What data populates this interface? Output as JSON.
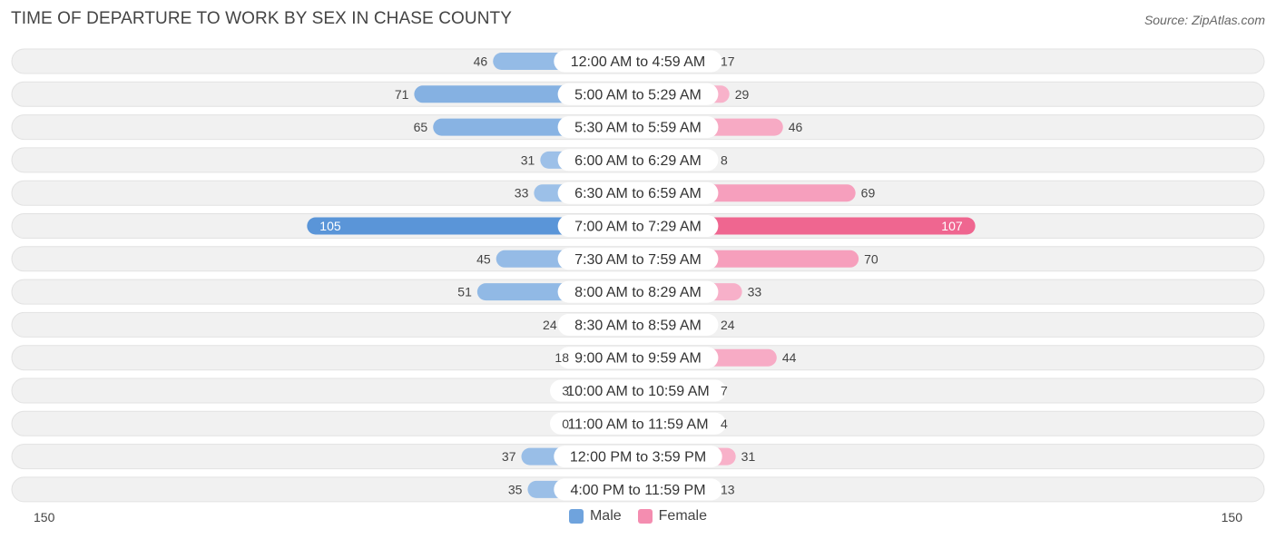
{
  "header": {
    "title": "TIME OF DEPARTURE TO WORK BY SEX IN CHASE COUNTY",
    "source": "Source: ZipAtlas.com"
  },
  "colors": {
    "male": "#6fa3dd",
    "male_strong": "#5a95d8",
    "female": "#f48db0",
    "female_strong": "#ef6690"
  },
  "chart_data": {
    "type": "bar",
    "orientation": "horizontal-diverging",
    "categories": [
      "12:00 AM to 4:59 AM",
      "5:00 AM to 5:29 AM",
      "5:30 AM to 5:59 AM",
      "6:00 AM to 6:29 AM",
      "6:30 AM to 6:59 AM",
      "7:00 AM to 7:29 AM",
      "7:30 AM to 7:59 AM",
      "8:00 AM to 8:29 AM",
      "8:30 AM to 8:59 AM",
      "9:00 AM to 9:59 AM",
      "10:00 AM to 10:59 AM",
      "11:00 AM to 11:59 AM",
      "12:00 PM to 3:59 PM",
      "4:00 PM to 11:59 PM"
    ],
    "series": [
      {
        "name": "Male",
        "values": [
          46,
          71,
          65,
          31,
          33,
          105,
          45,
          51,
          24,
          18,
          3,
          0,
          37,
          35
        ]
      },
      {
        "name": "Female",
        "values": [
          17,
          29,
          46,
          8,
          69,
          107,
          70,
          33,
          24,
          44,
          7,
          4,
          31,
          13
        ]
      }
    ],
    "axis": {
      "left_label": "150",
      "right_label": "150",
      "max": 150
    },
    "legend_position": "bottom-center"
  }
}
